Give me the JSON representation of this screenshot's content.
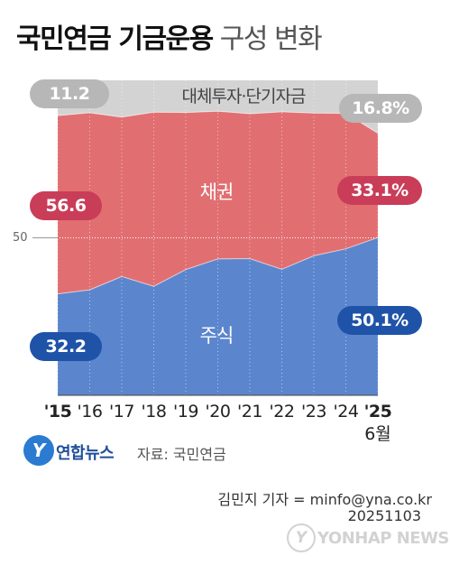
{
  "title": {
    "bold": "국민연금 기금운용",
    "light": "구성 변화"
  },
  "chart_data": {
    "type": "area",
    "x_ticks": [
      "'15",
      "'16",
      "'17",
      "'18",
      "'19",
      "'20",
      "'21",
      "'22",
      "'23",
      "'24",
      "'25"
    ],
    "x_sub": "6월",
    "ylim": [
      0,
      100
    ],
    "reference_line": {
      "value": 50,
      "label": "50"
    },
    "series": [
      {
        "name": "주식",
        "color": "#5b86cd",
        "values": [
          32.2,
          33.5,
          37.7,
          34.6,
          39.9,
          43.3,
          43.4,
          40.0,
          44.3,
          46.5,
          50.1
        ]
      },
      {
        "name": "채권",
        "color": "#e16f71",
        "values": [
          56.6,
          56.2,
          50.6,
          55.3,
          49.9,
          46.9,
          46.0,
          50.0,
          45.3,
          43.0,
          33.1
        ]
      },
      {
        "name": "대체투자·단기자금",
        "color": "#d3d3d3",
        "values": [
          11.2,
          10.3,
          11.7,
          10.1,
          10.2,
          9.8,
          10.6,
          10.0,
          10.4,
          10.5,
          16.8
        ]
      }
    ],
    "start_labels": {
      "top": "11.2",
      "mid": "56.6",
      "bottom": "32.2"
    },
    "end_labels": {
      "top": "16.8%",
      "mid": "33.1%",
      "bottom": "50.1%"
    }
  },
  "footer": {
    "logo_glyph": "Y",
    "agency": "연합뉴스",
    "source": "자료: 국민연금",
    "credit": "김민지 기자 = minfo@yna.co.kr",
    "date": "20251103",
    "watermark": "YONHAP NEWS"
  }
}
